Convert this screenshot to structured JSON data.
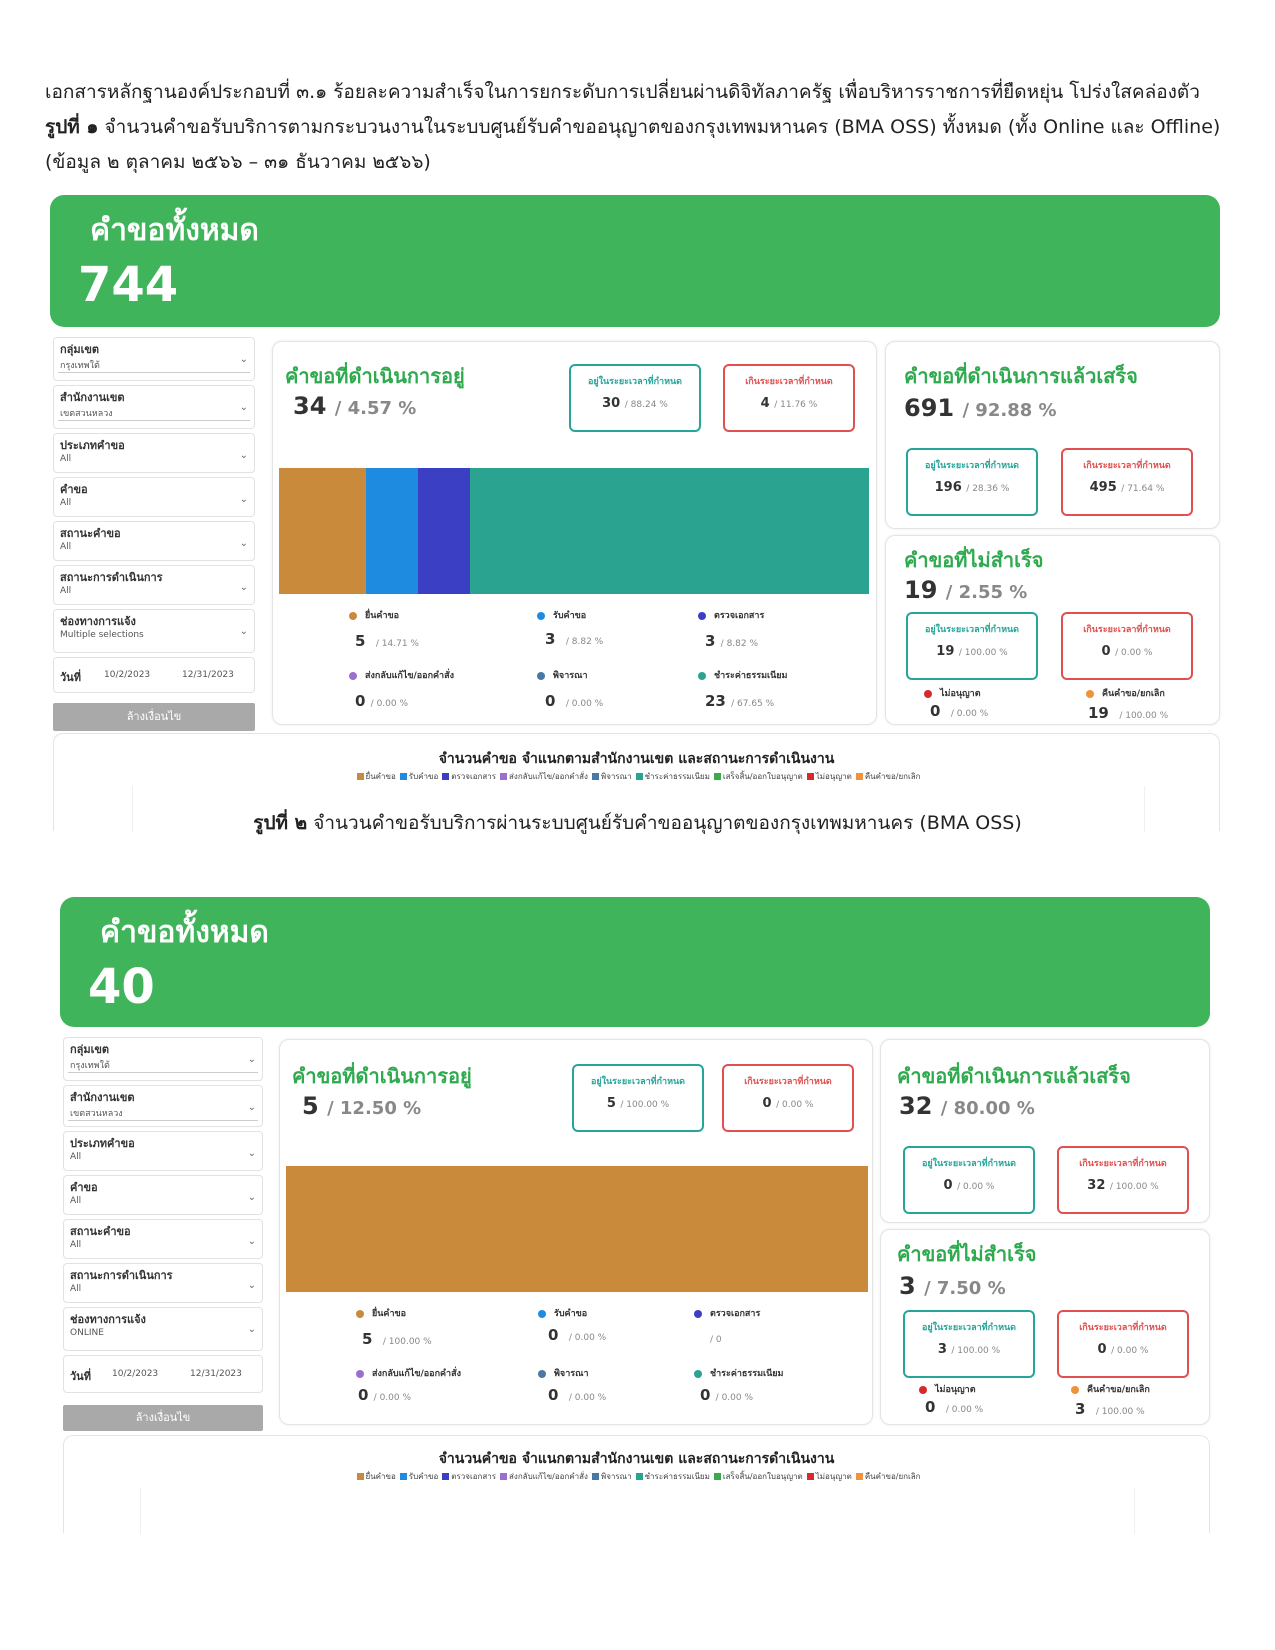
{
  "doc": {
    "line1": "เอกสารหลักฐานองค์ประกอบที่ ๓.๑ ร้อยละความสำเร็จในการยกระดับการเปลี่ยนผ่านดิจิทัลภาครัฐ เพื่อบริหารราชการที่ยืดหยุ่น โปร่งใสคล่องตัว",
    "fig1_label": "รูปที่ ๑",
    "fig1_text": "จำนวนคำขอรับบริการตามกระบวนงานในระบบศูนย์รับคำขออนุญาตของกรุงเทพมหานคร (BMA OSS) ทั้งหมด (ทั้ง Online และ Offline)",
    "fig1_range": "(ข้อมูล ๒ ตุลาคม ๒๕๖๖ – ๓๑ ธันวาคม ๒๕๖๖)",
    "fig2_label": "รูปที่ ๒",
    "fig2_text": "จำนวนคำขอรับบริการผ่านระบบศูนย์รับคำขออนุญาตของกรุงเทพมหานคร (BMA OSS)"
  },
  "labels": {
    "total_title": "คำขอทั้งหมด",
    "in_progress_title": "คำขอที่ดำเนินการอยู่",
    "completed_title": "คำขอที่ดำเนินการแล้วเสร็จ",
    "failed_title": "คำขอที่ไม่สำเร็จ",
    "on_time": "อยู่ในระยะเวลาที่กำหนด",
    "over_time": "เกินระยะเวลาที่กำหนด",
    "filter_group": "กลุ่มเขต",
    "filter_office": "สำนักงานเขต",
    "filter_type": "ประเภทคำขอ",
    "filter_request": "คำขอ",
    "filter_status": "สถานะคำขอ",
    "filter_op_status": "สถานะการดำเนินการ",
    "filter_channel": "ช่องทางการแจ้ง",
    "date_label": "วันที่",
    "clear_button": "ล้างเงื่อนไข",
    "stage_submit": "ยื่นคำขอ",
    "stage_receive": "รับคำขอ",
    "stage_check": "ตรวจเอกสาร",
    "stage_return": "ส่งกลับแก้ไข/ออกคำสั่ง",
    "stage_consider": "พิจารณา",
    "stage_fee": "ชำระค่าธรรมเนียม",
    "fail_denied": "ไม่อนุญาต",
    "fail_cancel": "คืนคำขอ/ยกเลิก",
    "chart_title": "จำนวนคำขอ  จำแนกตามสำนักงานเขต และสถานะการดำเนินงาน",
    "legend": [
      "ยื่นคำขอ",
      "รับคำขอ",
      "ตรวจเอกสาร",
      "ส่งกลับแก้ไข/ออกคำสั่ง",
      "พิจารณา",
      "ชำระค่าธรรมเนียม",
      "เสร็จสิ้น/ออกใบอนุญาต",
      "ไม่อนุญาต",
      "คืนคำขอ/ยกเลิก"
    ]
  },
  "colors": {
    "submit": "#c98a3c",
    "receive": "#1f8be0",
    "check": "#3b3fc4",
    "return": "#9b6fd1",
    "consider": "#4a78a6",
    "fee": "#2aa391",
    "done": "#3aaa4a",
    "denied": "#d62b2b",
    "cancel": "#f0913c"
  },
  "dash1": {
    "total": "744",
    "filters": {
      "group": "กรุงเทพใต้",
      "office": "เขตสวนหลวง",
      "type": "All",
      "request": "All",
      "status": "All",
      "op_status": "All",
      "channel": "Multiple selections",
      "date_from": "10/2/2023",
      "date_to": "12/31/2023"
    },
    "in_progress": {
      "count": "34",
      "pct": "/ 4.57 %",
      "on_time": "30",
      "on_time_pct": "/ 88.24 %",
      "over": "4",
      "over_pct": "/ 11.76 %"
    },
    "completed": {
      "count": "691",
      "pct": "/ 92.88 %",
      "on_time": "196",
      "on_time_pct": "/ 28.36 %",
      "over": "495",
      "over_pct": "/ 71.64 %"
    },
    "failed": {
      "count": "19",
      "pct": "/ 2.55 %",
      "on_time": "19",
      "on_time_pct": "/ 100.00 %",
      "over": "0",
      "over_pct": "/ 0.00 %",
      "denied": "0",
      "denied_pct": "/ 0.00 %",
      "cancel": "19",
      "cancel_pct": "/ 100.00 %"
    },
    "stages": {
      "submit": "5",
      "submit_pct": "/ 14.71 %",
      "receive": "3",
      "receive_pct": "/ 8.82 %",
      "check": "3",
      "check_pct": "/ 8.82 %",
      "return": "0",
      "return_pct": "/ 0.00 %",
      "consider": "0",
      "consider_pct": "/ 0.00 %",
      "fee": "23",
      "fee_pct": "/ 67.65 %"
    },
    "bar_values": [
      5,
      3,
      3,
      0,
      0,
      23
    ]
  },
  "dash2": {
    "total": "40",
    "filters": {
      "group": "กรุงเทพใต้",
      "office": "เขตสวนหลวง",
      "type": "All",
      "request": "All",
      "status": "All",
      "op_status": "All",
      "channel": "ONLINE",
      "date_from": "10/2/2023",
      "date_to": "12/31/2023"
    },
    "in_progress": {
      "count": "5",
      "pct": "/ 12.50 %",
      "on_time": "5",
      "on_time_pct": "/ 100.00 %",
      "over": "0",
      "over_pct": "/ 0.00 %"
    },
    "completed": {
      "count": "32",
      "pct": "/ 80.00 %",
      "on_time": "0",
      "on_time_pct": "/ 0.00 %",
      "over": "32",
      "over_pct": "/ 100.00 %"
    },
    "failed": {
      "count": "3",
      "pct": "/ 7.50 %",
      "on_time": "3",
      "on_time_pct": "/ 100.00 %",
      "over": "0",
      "over_pct": "/ 0.00 %",
      "denied": "0",
      "denied_pct": "/ 0.00 %",
      "cancel": "3",
      "cancel_pct": "/ 100.00 %"
    },
    "stages": {
      "submit": "5",
      "submit_pct": "/ 100.00 %",
      "receive": "0",
      "receive_pct": "/ 0.00 %",
      "check": "",
      "check_pct": "/ 0",
      "return": "0",
      "return_pct": "/ 0.00 %",
      "consider": "0",
      "consider_pct": "/ 0.00 %",
      "fee": "0",
      "fee_pct": "/ 0.00 %"
    },
    "bar_values": [
      5,
      0,
      0,
      0,
      0,
      0
    ]
  }
}
